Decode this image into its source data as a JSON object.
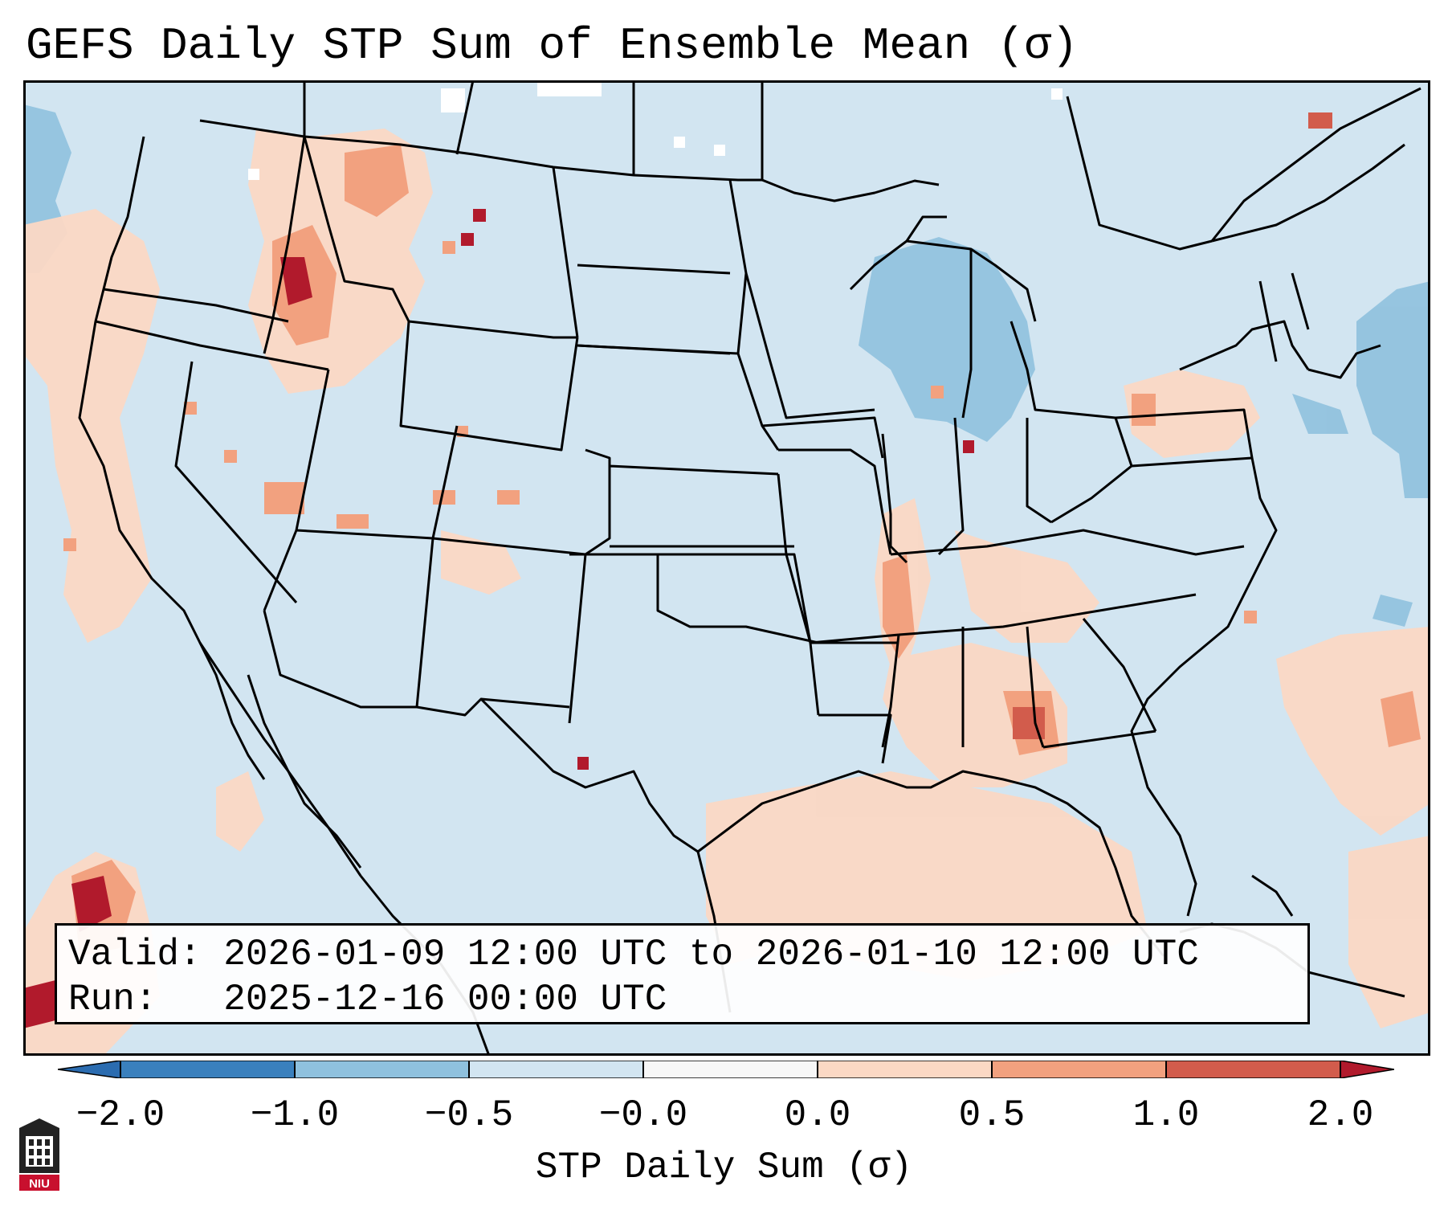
{
  "title": "GEFS Daily STP Sum of Ensemble Mean (σ)",
  "valid_label": "Valid:",
  "valid_text": "2026-01-09 12:00 UTC to 2026-01-10 12:00 UTC",
  "run_label": "Run:",
  "run_text": "2025-12-16 00:00 UTC",
  "colorbar": {
    "label": "STP Daily Sum (σ)",
    "ticks": [
      "−2.0",
      "−1.0",
      "−0.5",
      "−0.0",
      "0.0",
      "0.5",
      "1.0",
      "2.0"
    ],
    "colors": [
      "#3a80bd",
      "#8fc1de",
      "#d2e5f1",
      "#f7f7f7",
      "#fbd8c4",
      "#f2a17f",
      "#d25c4c",
      "#b11a2c"
    ]
  },
  "map": {
    "background_color": "#d2e5f1",
    "border_color": "#000000"
  },
  "logo": {
    "text": "NIU",
    "icon": "university-seal-icon"
  }
}
